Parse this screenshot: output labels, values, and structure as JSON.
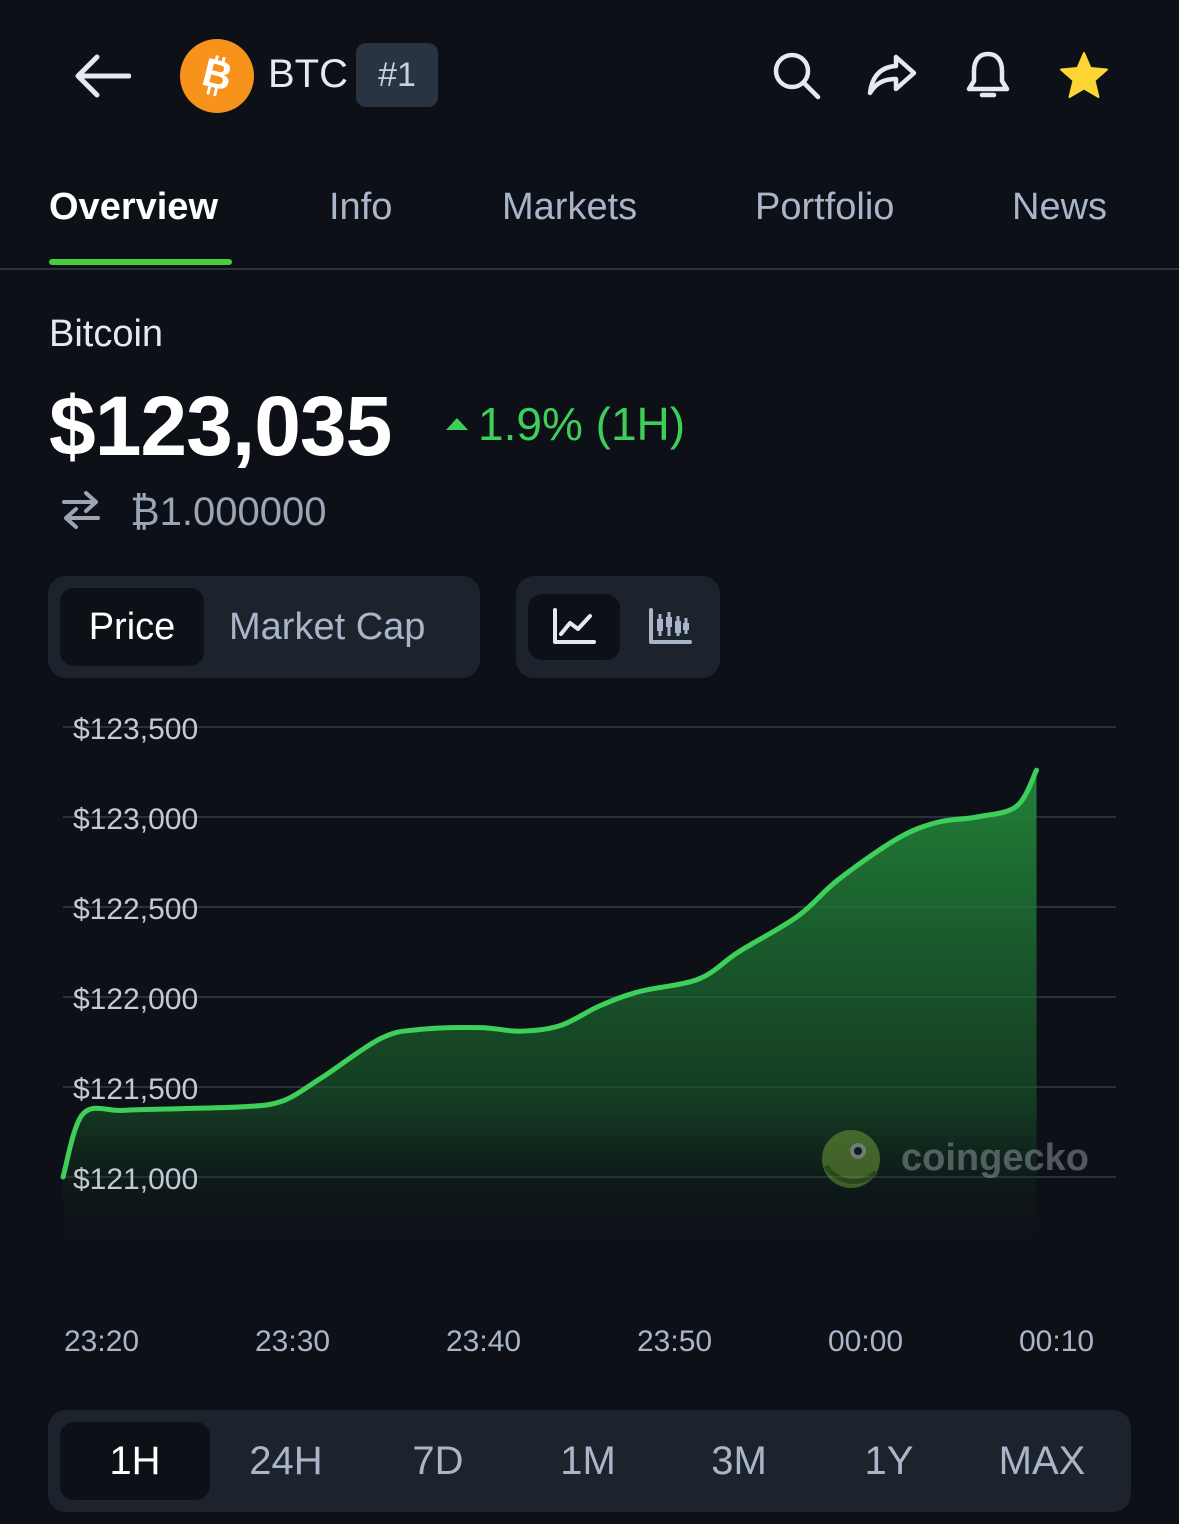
{
  "header": {
    "symbol": "BTC",
    "rank": "#1",
    "icons": [
      "back-arrow-icon",
      "bitcoin-logo-icon",
      "search-icon",
      "share-icon",
      "bell-icon",
      "star-icon"
    ]
  },
  "tabs": [
    {
      "label": "Overview",
      "active": true
    },
    {
      "label": "Info"
    },
    {
      "label": "Markets"
    },
    {
      "label": "Portfolio"
    },
    {
      "label": "News"
    }
  ],
  "coin": {
    "name": "Bitcoin",
    "price": "$123,035",
    "change": "1.9% (1H)",
    "btc_value": "₿1.000000"
  },
  "chart_toggle": {
    "price": "Price",
    "market_cap": "Market Cap"
  },
  "colors": {
    "accent_green": "#3ecf5a",
    "tab_underline": "#4bcc3f",
    "btc_orange": "#f7931a"
  },
  "chart_data": {
    "type": "area",
    "y_tick_labels": [
      "$123,500",
      "$123,000",
      "$122,500",
      "$122,000",
      "$121,500",
      "$121,000"
    ],
    "y_ticks": [
      123500,
      123000,
      122500,
      122000,
      121500,
      121000
    ],
    "ylim": [
      121000,
      123500
    ],
    "x_tick_labels": [
      "23:20",
      "23:30",
      "23:40",
      "23:50",
      "00:00",
      "00:10"
    ],
    "xlim": [
      "23:20",
      "00:13"
    ],
    "points": [
      [
        "23:20",
        121000
      ],
      [
        "23:21",
        121350
      ],
      [
        "23:23",
        121370
      ],
      [
        "23:26",
        121380
      ],
      [
        "23:29",
        121390
      ],
      [
        "23:31",
        121420
      ],
      [
        "23:33",
        121550
      ],
      [
        "23:36",
        121770
      ],
      [
        "23:38",
        121820
      ],
      [
        "23:41",
        121830
      ],
      [
        "23:43",
        121810
      ],
      [
        "23:45",
        121840
      ],
      [
        "23:47",
        121950
      ],
      [
        "23:49",
        122030
      ],
      [
        "23:52",
        122100
      ],
      [
        "23:54",
        122250
      ],
      [
        "23:57",
        122450
      ],
      [
        "23:59",
        122650
      ],
      [
        "00:02",
        122880
      ],
      [
        "00:04",
        122970
      ],
      [
        "00:06",
        123000
      ],
      [
        "00:08",
        123060
      ],
      [
        "00:09",
        123260
      ]
    ],
    "grid": true,
    "watermark": "coingecko"
  },
  "time_ranges": [
    {
      "label": "1H",
      "active": true
    },
    {
      "label": "24H"
    },
    {
      "label": "7D"
    },
    {
      "label": "1M"
    },
    {
      "label": "3M"
    },
    {
      "label": "1Y"
    },
    {
      "label": "MAX"
    }
  ]
}
